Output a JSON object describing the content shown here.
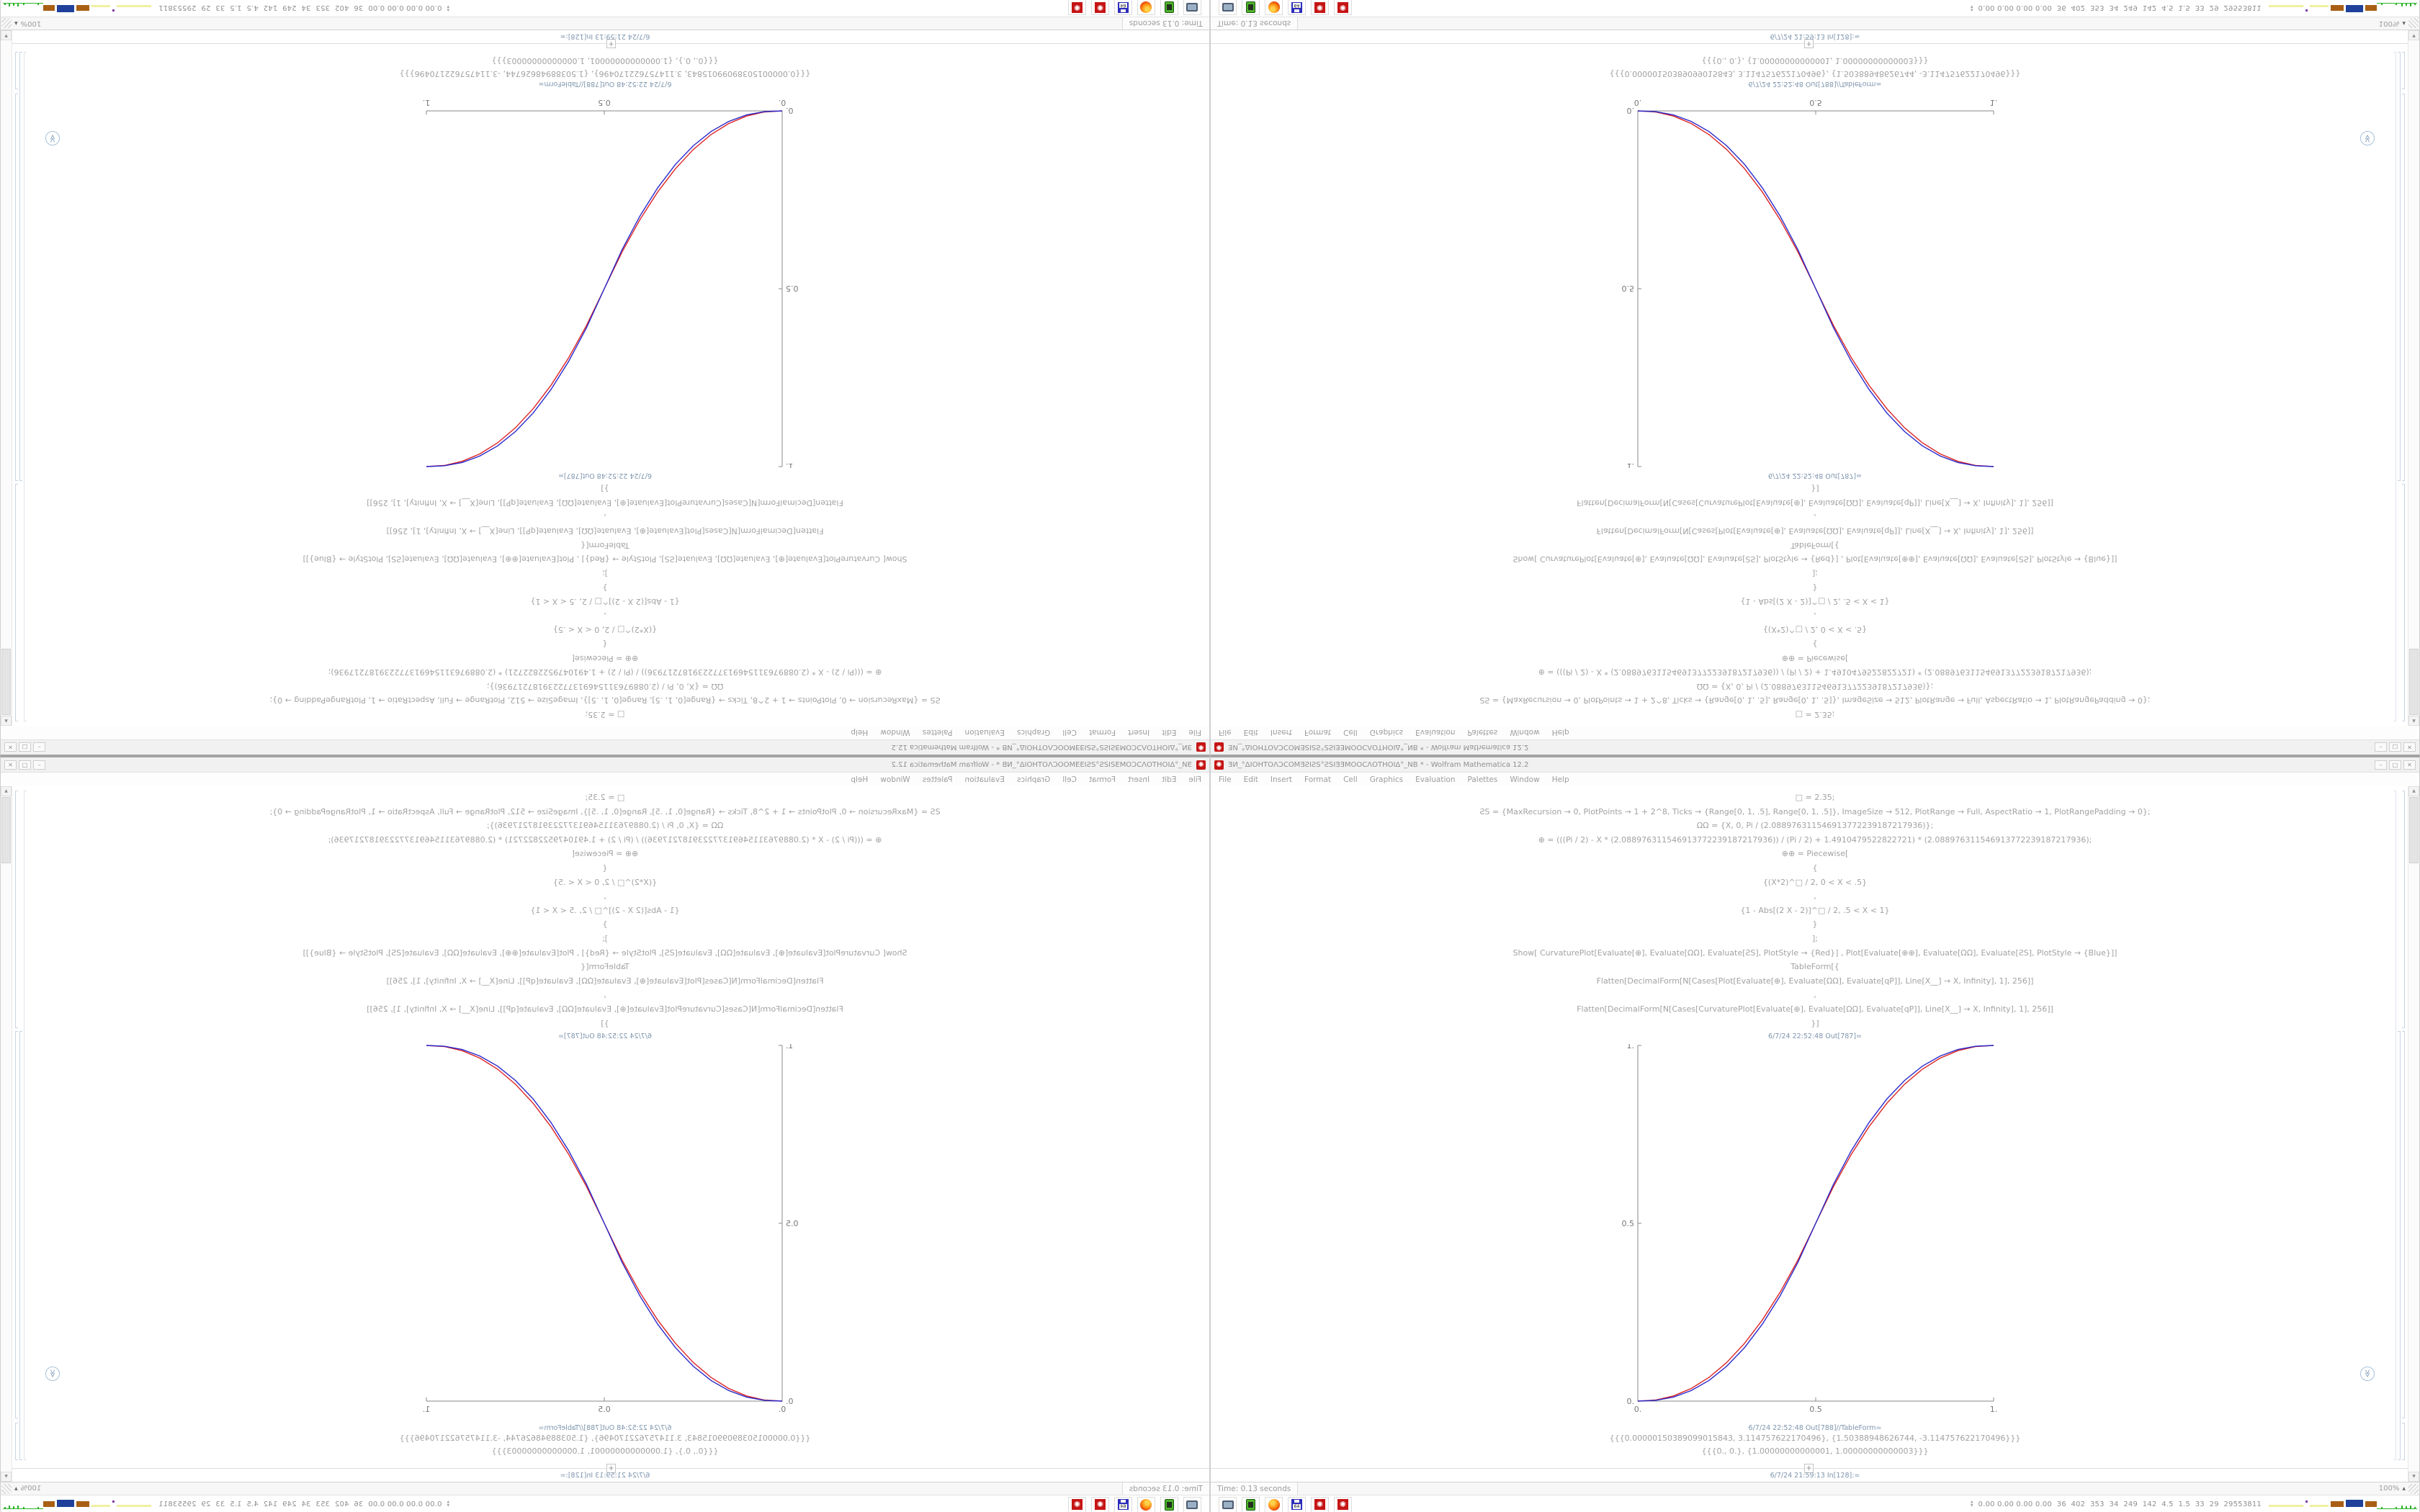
{
  "window": {
    "title": "ƎИ_°ΔIOHTOΛƆCOMƎƧIƧS°ƧSIƎƎMOOCΛOTHOIΔ°_NB * - Wolfram Mathematica 12.2",
    "app_icon": "✺",
    "controls": {
      "minimize": "–",
      "maximize": "□",
      "close": "✕"
    },
    "menu": [
      "File",
      "Edit",
      "Insert",
      "Format",
      "Cell",
      "Graphics",
      "Evaluation",
      "Palettes",
      "Window",
      "Help"
    ],
    "cells": {
      "code_lines": [
        "□ = 2.35;",
        "ƧS = {MaxRecursion → 0, PlotPoints → 1 + 2^8, Ticks → {Range[0, 1, .5], Range[0, 1, .5]}, ImageSize → 512, PlotRange → Full, AspectRatio → 1, PlotRangePadding → 0};",
        "ΩΩ = {X, 0, Pi / (2.088976311546913772239187217936)};",
        "⊕ = (((Pi / 2) - X * (2.088976311546913772239187217936)) / (Pi / 2) + 1.4910479522822721) * (2.088976311546913772239187217936);",
        "⊕⊕ = Piecewise[",
        "{",
        "{(X*2)^□ / 2, 0 < X < .5}",
        ",",
        "{1 - Abs[(2 X - 2)]^□ / 2, .5 < X < 1}",
        "}",
        "];",
        "Show[  CurvaturePlot[Evaluate[⊕], Evaluate[ΩΩ], Evaluate[ƧS], PlotStyle → {Red}]  ,  Plot[Evaluate[⊕⊕], Evaluate[ΩΩ], Evaluate[ƧS], PlotStyle → {Blue}]]",
        "TableForm[{",
        "Flatten[DecimalForm[N[Cases[Plot[Evaluate[⊕], Evaluate[ΩΩ], Evaluate[qP]], Line[X__] → X, Infinity], 1], 256]]",
        ",",
        "Flatten[DecimalForm[N[Cases[CurvaturePlot[Evaluate[⊕], Evaluate[ΩΩ], Evaluate[qP]], Line[X__] → X, Infinity], 1], 256]]",
        "}]"
      ],
      "out1_label": "6/7/24 22:52:48 Out[787]=",
      "out2_label": "6/7/24 22:52:48 Out[788]//TableForm=",
      "table_rows": [
        "{{{0.00000150389099015843, 3.114757622170496}, {1.50388948626744, -3.114757622170496}}}",
        "{{{0., 0.}, {1.00000000000001, 1.00000000000003}}}"
      ],
      "insert_plus": "+",
      "in_label": "6/7/24 21:59:13 In[128]:="
    },
    "statusbar": {
      "time": "Time: 0.13 seconds",
      "zoom": "100%",
      "zoom_arrow": "▲"
    },
    "scrollbar": {
      "up": "▲",
      "down": "▼"
    },
    "chevron_glyph": "≫"
  },
  "taskbar": {
    "icons": [
      "monitor",
      "device",
      "firefox",
      "floppy",
      "mathematica",
      "mathematica"
    ],
    "floppy_label": "64",
    "updown_up": "▲",
    "updown_down": "▼",
    "monitor_numbers": "0.00 0.00 0.00 0.00  36  402  353  34  249  142  4.5  1.5  33  29  29553811",
    "blocks": [
      {
        "color": "#f0f0a2",
        "w": 48,
        "h": 3,
        "raise": 0
      },
      {
        "color": "#7a3fa8",
        "w": 3,
        "h": 3,
        "raise": 6
      },
      {
        "color": "#f0f0a2",
        "w": 26,
        "h": 3,
        "raise": 0
      },
      {
        "color": "#a85f14",
        "w": 18,
        "h": 8,
        "raise": 0
      },
      {
        "color": "#1f419b",
        "w": 24,
        "h": 10,
        "raise": 0
      },
      {
        "color": "#a85f14",
        "w": 16,
        "h": 8,
        "raise": 0
      }
    ],
    "spark_spikes": [
      {
        "x": 6,
        "h": 3
      },
      {
        "x": 26,
        "h": 3
      },
      {
        "x": 34,
        "h": 5
      },
      {
        "x": 40,
        "h": 4
      },
      {
        "x": 46,
        "h": 5
      },
      {
        "x": 52,
        "h": 3
      }
    ]
  },
  "chart_data": {
    "type": "line",
    "title": "",
    "xlabel": "",
    "ylabel": "",
    "xlim": [
      0,
      1
    ],
    "ylim": [
      0,
      1
    ],
    "grid": false,
    "legend": false,
    "xticks": [
      "0.",
      "0.5",
      "1."
    ],
    "yticks": [
      "0.",
      "0.5",
      "1."
    ],
    "x": [
      0,
      0.05,
      0.1,
      0.15,
      0.2,
      0.25,
      0.3,
      0.35,
      0.4,
      0.45,
      0.5,
      0.55,
      0.6,
      0.65,
      0.7,
      0.75,
      0.8,
      0.85,
      0.9,
      0.95,
      1
    ],
    "series": [
      {
        "name": "CurvaturePlot (Red)",
        "color": "#dd2222",
        "values": [
          0,
          0.0031,
          0.0145,
          0.0354,
          0.0666,
          0.1088,
          0.1625,
          0.2281,
          0.3061,
          0.3966,
          0.5,
          0.6034,
          0.6939,
          0.7719,
          0.8375,
          0.8912,
          0.9334,
          0.9646,
          0.9855,
          0.9969,
          1
        ]
      },
      {
        "name": "Plot (Blue)",
        "color": "#2828cc",
        "values": [
          0,
          0.0022,
          0.0114,
          0.0295,
          0.058,
          0.0981,
          0.1505,
          0.2163,
          0.296,
          0.3903,
          0.5,
          0.6097,
          0.704,
          0.7837,
          0.8495,
          0.9019,
          0.942,
          0.9705,
          0.9886,
          0.9978,
          1
        ]
      }
    ],
    "axis_color": "#8a8a8a",
    "tick_label_color": "#777777"
  }
}
